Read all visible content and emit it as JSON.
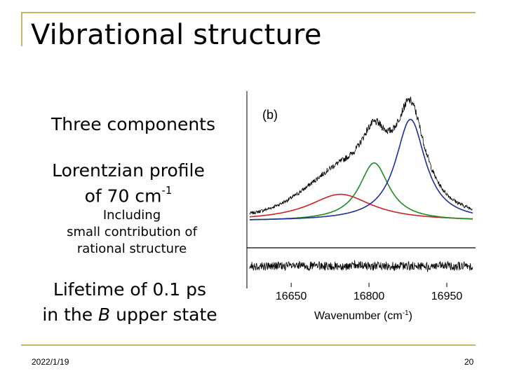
{
  "slide": {
    "title": "Vibrational structure",
    "bullets": {
      "components": "Three components",
      "lorentzian_line1": "Lorentzian profile",
      "lorentzian_line2_prefix": "of 70 cm",
      "lorentzian_line2_sup": "-1",
      "including_line1": "Including",
      "including_line2": "small contribution of",
      "including_line3": "rational structure",
      "lifetime_line1": "Lifetime of 0.1 ps",
      "lifetime_line2_prefix": "in the ",
      "lifetime_line2_em": "B",
      "lifetime_line2_suffix": " upper state"
    },
    "footer": {
      "date": "2022/1/19",
      "page": "20"
    },
    "colors": {
      "accent": "#c9b36a",
      "data": "#000000",
      "fit_total": "#1f2e9e",
      "peak2": "#1e8a24",
      "peak1": "#d02020"
    }
  },
  "chart_data": {
    "type": "line",
    "panel_label": "(b)",
    "title": "",
    "xlabel": "Wavenumber (cm",
    "xlabel_sup": "-1",
    "xlabel_suffix": ")",
    "ylabel": "",
    "xlim": [
      16570,
      17000
    ],
    "ylim": [
      0,
      1.1
    ],
    "xticks": [
      16650,
      16800,
      16950
    ],
    "tick_labels": [
      "16650",
      "16800",
      "16950"
    ],
    "grid": false,
    "legend": "none",
    "components": [
      {
        "name": "",
        "color": "#d02020",
        "center": 16745,
        "amplitude": 0.22,
        "fwhm": 150
      },
      {
        "name": "",
        "color": "#1e8a24",
        "center": 16810,
        "amplitude": 0.48,
        "fwhm": 70
      },
      {
        "name": "",
        "color": "#1f2e9e",
        "center": 16880,
        "amplitude": 0.84,
        "fwhm": 70
      }
    ],
    "residual_range": [
      -0.1,
      0.1
    ]
  }
}
